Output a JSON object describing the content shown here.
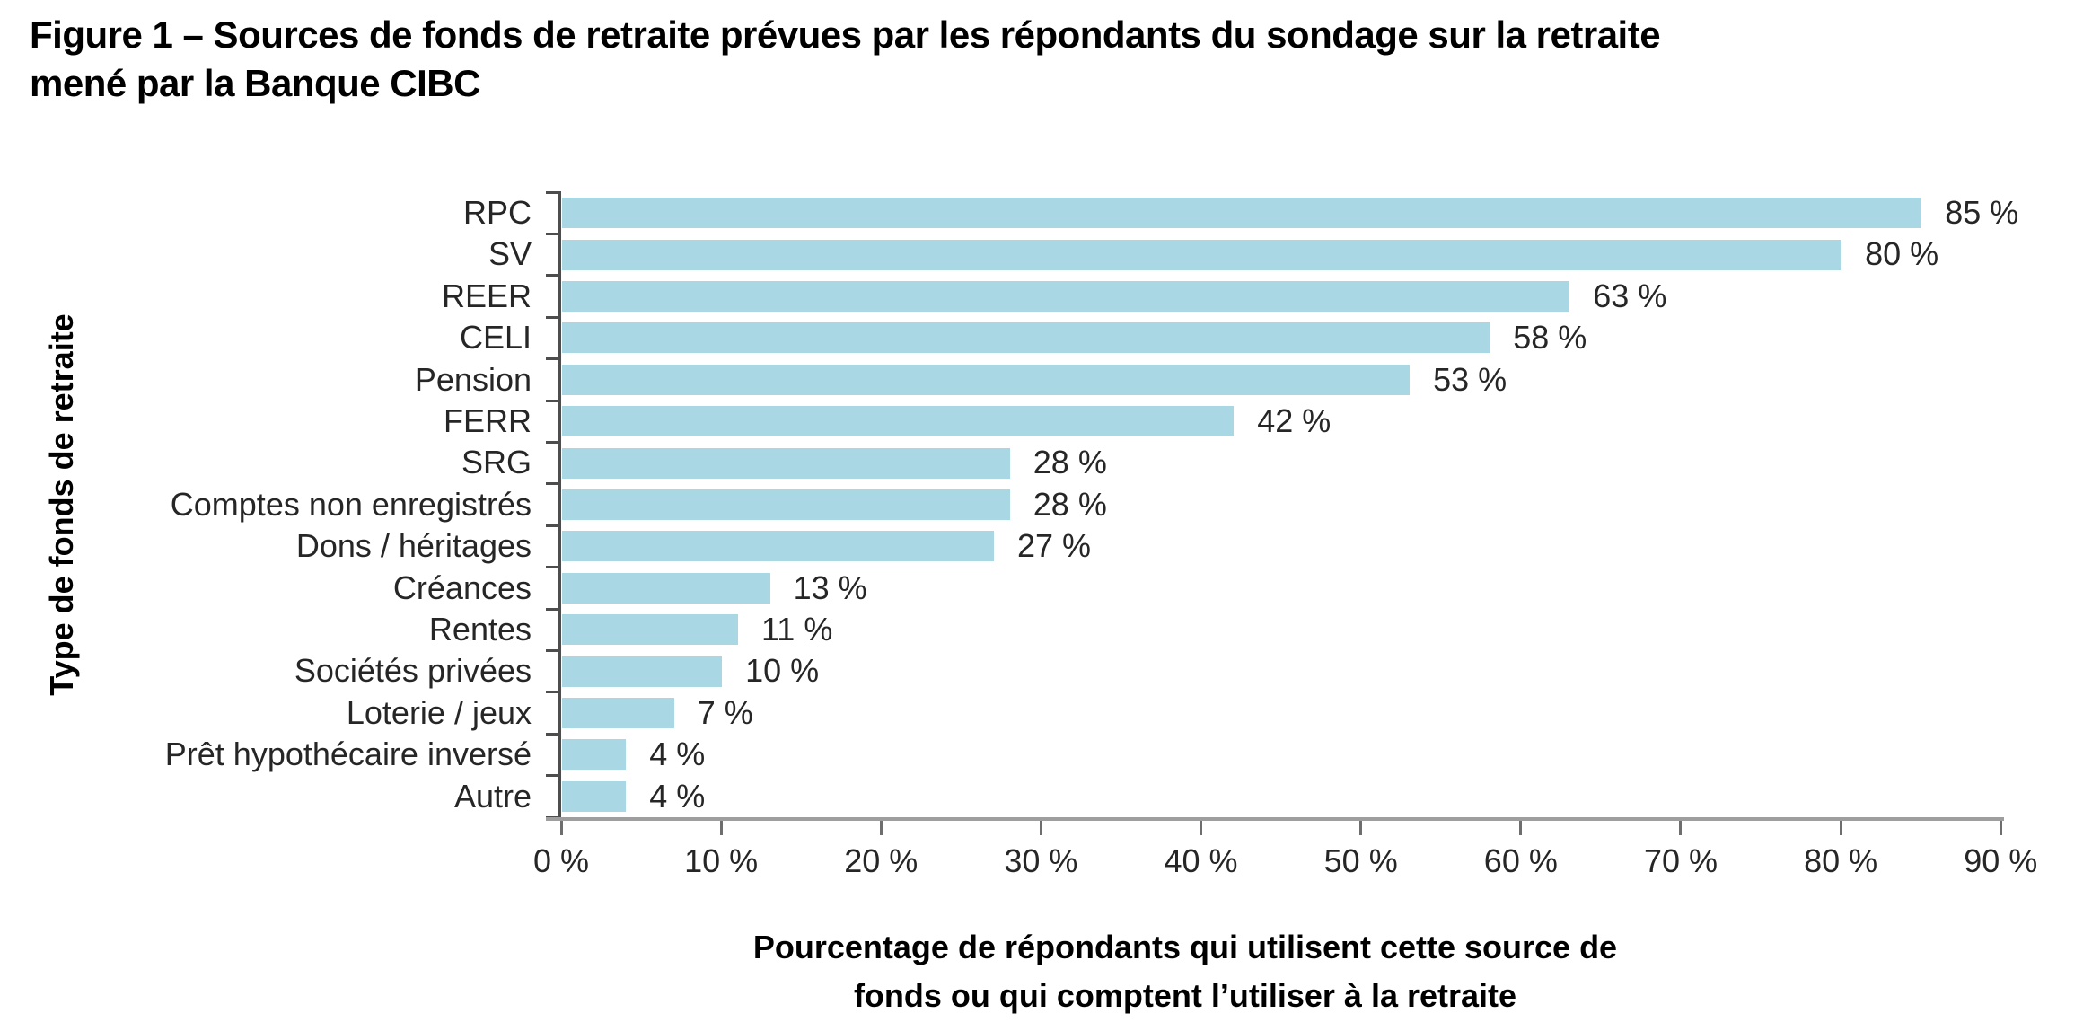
{
  "title": {
    "full": "Figure 1 – Sources de fonds de retraite prévues par les répondants du sondage sur la retraite mené par la Banque CIBC",
    "lines": [
      "Figure 1 – Sources de fonds de retraite prévues par les répondants du sondage sur la retraite",
      "mené par la Banque CIBC"
    ]
  },
  "colors": {
    "bar": "#a9d8e4",
    "y_axis_line": "#4d4d4d",
    "x_axis_line": "#9e9e9e",
    "x_tick": "#6e6e6e",
    "text": "#262626",
    "title_text": "#000000"
  },
  "chart_data": {
    "type": "bar",
    "orientation": "horizontal",
    "categories": [
      "RPC",
      "SV",
      "REER",
      "CELI",
      "Pension",
      "FERR",
      "SRG",
      "Comptes non enregistrés",
      "Dons / héritages",
      "Créances",
      "Rentes",
      "Sociétés privées",
      "Loterie / jeux",
      "Prêt hypothécaire inversé",
      "Autre"
    ],
    "values": [
      85,
      80,
      63,
      58,
      53,
      42,
      28,
      28,
      27,
      13,
      11,
      10,
      7,
      4,
      4
    ],
    "value_labels": [
      "85 %",
      "80 %",
      "63 %",
      "58 %",
      "53 %",
      "42 %",
      "28 %",
      "28 %",
      "27 %",
      "13 %",
      "11 %",
      "10 %",
      "7 %",
      "4 %",
      "4 %"
    ],
    "title": "Figure 1 – Sources de fonds de retraite prévues par les répondants du sondage sur la retraite mené par la Banque CIBC",
    "xlabel": "Pourcentage de répondants qui utilisent cette source de fonds ou qui comptent l’utiliser à la retraite",
    "xlabel_lines": [
      "Pourcentage de répondants qui utilisent cette source de",
      "fonds ou qui comptent l’utiliser à la retraite"
    ],
    "ylabel": "Type de fonds de retraite",
    "xlim": [
      0,
      90
    ],
    "x_ticks": [
      0,
      10,
      20,
      30,
      40,
      50,
      60,
      70,
      80,
      90
    ],
    "x_tick_labels": [
      "0 %",
      "10 %",
      "20 %",
      "30 %",
      "40 %",
      "50 %",
      "60 %",
      "70 %",
      "80 %",
      "90 %"
    ],
    "grid": false,
    "legend": false
  }
}
